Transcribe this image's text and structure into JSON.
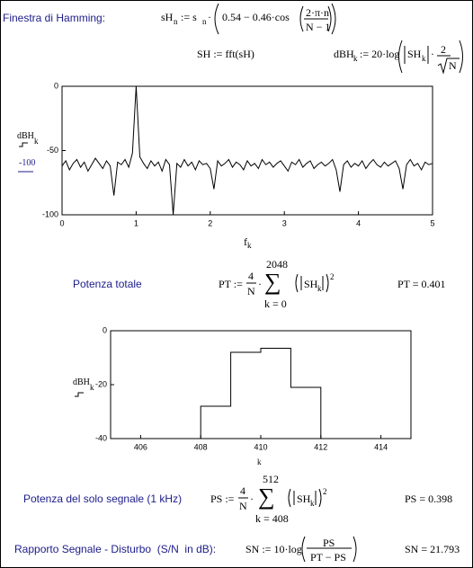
{
  "labels": {
    "hamming": "Finestra di Hamming:",
    "total_power": "Potenza totale",
    "signal_power": "Potenza del solo segnale (1 kHz)",
    "snr": "Rapporto Segnale - Disturbo  (S/N  in dB):"
  },
  "formulas": {
    "window": {
      "lhs": "sH",
      "lhs_sub": "n",
      "assign": ":= s",
      "s_sub": "n",
      "dot": "·",
      "body": "0.54 − 0.46·cos",
      "num": "2·π·n",
      "den": "N − 1"
    },
    "fft": {
      "text": "SH := fft(sH)"
    },
    "db": {
      "lhs": "dBH",
      "lhs_sub": "k",
      "body": ":= 20·log",
      "abs": "SH",
      "abs_sub": "k",
      "dot": "·",
      "num": "2",
      "den": "N"
    },
    "pt": {
      "lhs": "PT :=",
      "num": "4",
      "den": "N",
      "dot": "·",
      "sum": "∑",
      "upper": "2048",
      "lower": "k = 0",
      "abs": "SH",
      "abs_sub": "k",
      "power": "2",
      "result": "PT = 0.401"
    },
    "ps": {
      "lhs": "PS :=",
      "num": "4",
      "den": "N",
      "dot": "·",
      "sum": "∑",
      "upper": "512",
      "lower": "k = 408",
      "abs": "SH",
      "abs_sub": "k",
      "power": "2",
      "result": "PS = 0.398"
    },
    "sn": {
      "lhs": "SN := 10·log",
      "num": "PS",
      "den": "PT − PS",
      "result": "SN = 21.793"
    }
  },
  "chart_data": [
    {
      "type": "line",
      "line_style": "straight",
      "ylabel": "dBH",
      "ylabel_sub": "k",
      "trace2_label": "-100",
      "xlabel": "f",
      "xlabel_sub": "k",
      "xlim": [
        0,
        5
      ],
      "xticks": [
        0,
        1,
        2,
        3,
        4,
        5
      ],
      "ylim": [
        -100,
        0
      ],
      "yticks": [
        -100,
        -50,
        0
      ],
      "series": [
        {
          "color": "#000000",
          "x": [
            0,
            0.05,
            0.1,
            0.15,
            0.2,
            0.25,
            0.3,
            0.35,
            0.4,
            0.45,
            0.5,
            0.55,
            0.6,
            0.65,
            0.7,
            0.75,
            0.8,
            0.85,
            0.9,
            0.95,
            1,
            1.05,
            1.1,
            1.15,
            1.2,
            1.25,
            1.3,
            1.35,
            1.4,
            1.45,
            1.5,
            1.55,
            1.6,
            1.65,
            1.7,
            1.75,
            1.8,
            1.85,
            1.9,
            1.95,
            2,
            2.05,
            2.1,
            2.15,
            2.2,
            2.25,
            2.3,
            2.35,
            2.4,
            2.45,
            2.5,
            2.55,
            2.6,
            2.65,
            2.7,
            2.75,
            2.8,
            2.85,
            2.9,
            2.95,
            3,
            3.05,
            3.1,
            3.15,
            3.2,
            3.25,
            3.3,
            3.35,
            3.4,
            3.45,
            3.5,
            3.55,
            3.6,
            3.65,
            3.7,
            3.75,
            3.8,
            3.85,
            3.9,
            3.95,
            4,
            4.05,
            4.1,
            4.15,
            4.2,
            4.25,
            4.3,
            4.35,
            4.4,
            4.45,
            4.5,
            4.55,
            4.6,
            4.65,
            4.7,
            4.75,
            4.8,
            4.85,
            4.9,
            4.95,
            5
          ],
          "values": [
            -62,
            -58,
            -65,
            -60,
            -57,
            -63,
            -59,
            -66,
            -61,
            -56,
            -60,
            -64,
            -58,
            -62,
            -85,
            -59,
            -61,
            -57,
            -63,
            -52,
            0,
            -55,
            -60,
            -64,
            -58,
            -62,
            -59,
            -66,
            -57,
            -61,
            -100,
            -60,
            -63,
            -57,
            -62,
            -59,
            -65,
            -58,
            -61,
            -60,
            -64,
            -80,
            -58,
            -62,
            -60,
            -57,
            -63,
            -59,
            -61,
            -65,
            -58,
            -62,
            -60,
            -64,
            -57,
            -61,
            -59,
            -63,
            -60,
            -58,
            -62,
            -66,
            -59,
            -61,
            -57,
            -63,
            -60,
            -58,
            -64,
            -61,
            -59,
            -62,
            -60,
            -57,
            -65,
            -82,
            -61,
            -58,
            -63,
            -60,
            -62,
            -58,
            -64,
            -60,
            -57,
            -61,
            -63,
            -59,
            -62,
            -60,
            -58,
            -64,
            -80,
            -61,
            -57,
            -62,
            -60,
            -65,
            -59,
            -61,
            -60
          ]
        }
      ]
    },
    {
      "type": "line",
      "line_style": "step",
      "ylabel": "dBH",
      "ylabel_sub": "k",
      "xlabel": "k",
      "xlim": [
        405,
        415
      ],
      "xticks": [
        406,
        408,
        410,
        412,
        414
      ],
      "ylim": [
        -40,
        0
      ],
      "yticks": [
        -40,
        -20,
        0
      ],
      "series": [
        {
          "color": "#000000",
          "x": [
            407,
            408,
            409,
            410,
            411,
            412
          ],
          "values": [
            -40,
            -28,
            -8,
            -6.5,
            -21,
            -40
          ]
        }
      ]
    }
  ]
}
